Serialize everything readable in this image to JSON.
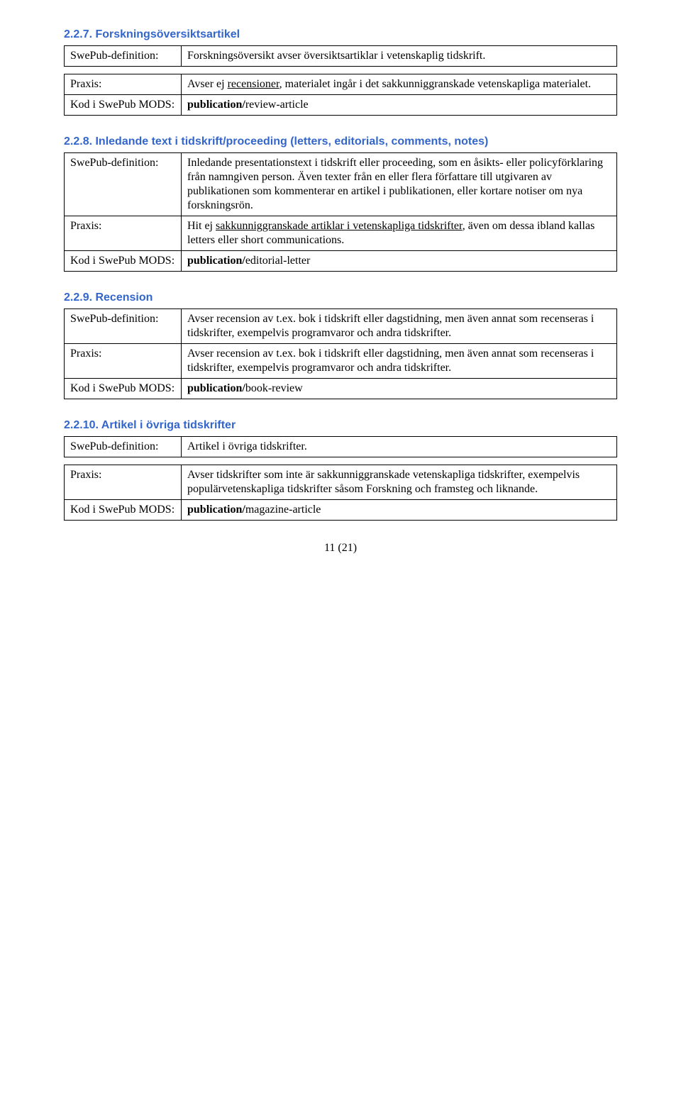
{
  "sections": [
    {
      "heading": "2.2.7. Forskningsöversiktsartikel",
      "split": true,
      "rows_top": [
        {
          "label": "SwePub-definition:",
          "value_parts": [
            {
              "text": "Forskningsöversikt avser översiktsartiklar i vetenskaplig tidskrift."
            }
          ]
        }
      ],
      "rows_bottom": [
        {
          "label": "Praxis:",
          "value_parts": [
            {
              "text": "Avser ej "
            },
            {
              "text": "recensioner",
              "underline": true
            },
            {
              "text": ", materialet ingår i det sakkunniggranskade vetenskapliga materialet."
            }
          ]
        },
        {
          "label": "Kod i SwePub MODS:",
          "value_parts": [
            {
              "text": "publication/",
              "bold": true
            },
            {
              "text": "review-article"
            }
          ]
        }
      ]
    },
    {
      "heading": "2.2.8. Inledande text i tidskrift/proceeding (letters, editorials, comments, notes)",
      "split": false,
      "rows": [
        {
          "label": "SwePub-definition:",
          "value_parts": [
            {
              "text": "Inledande presentationstext i tidskrift eller proceeding, som en åsikts- eller policyförklaring från namngiven person. Även texter från en eller flera författare till utgivaren av publikationen som kommenterar en artikel i publikationen, eller kortare notiser om nya forskningsrön."
            }
          ]
        },
        {
          "label": "Praxis:",
          "value_parts": [
            {
              "text": "Hit ej "
            },
            {
              "text": "sakkunniggranskade artiklar i vetenskapliga tidskrifter",
              "underline": true
            },
            {
              "text": ", även om dessa ibland kallas letters eller short communications."
            }
          ]
        },
        {
          "label": "Kod i SwePub MODS:",
          "value_parts": [
            {
              "text": "publication/",
              "bold": true
            },
            {
              "text": "editorial-letter"
            }
          ]
        }
      ]
    },
    {
      "heading": "2.2.9. Recension",
      "split": false,
      "rows": [
        {
          "label": "SwePub-definition:",
          "value_parts": [
            {
              "text": "Avser recension av t.ex. bok i tidskrift eller dagstidning, men även annat som recenseras i tidskrifter, exempelvis programvaror och andra tidskrifter."
            }
          ]
        },
        {
          "label": "Praxis:",
          "value_parts": [
            {
              "text": "Avser recension av t.ex. bok i tidskrift eller dagstidning, men även annat som recenseras i tidskrifter, exempelvis programvaror och andra tidskrifter."
            }
          ]
        },
        {
          "label": "Kod i SwePub MODS:",
          "value_parts": [
            {
              "text": "publication/",
              "bold": true
            },
            {
              "text": "book-review"
            }
          ]
        }
      ]
    },
    {
      "heading": "2.2.10. Artikel i övriga tidskrifter",
      "split": true,
      "rows_top": [
        {
          "label": "SwePub-definition:",
          "value_parts": [
            {
              "text": "Artikel i övriga tidskrifter."
            }
          ]
        }
      ],
      "rows_bottom": [
        {
          "label": "Praxis:",
          "value_parts": [
            {
              "text": "Avser tidskrifter som inte är sakkunniggranskade vetenskapliga tidskrifter, exempelvis populärvetenskapliga tidskrifter såsom Forskning och framsteg och liknande."
            }
          ]
        },
        {
          "label": "Kod i SwePub MODS:",
          "value_parts": [
            {
              "text": "publication/",
              "bold": true
            },
            {
              "text": "magazine-article"
            }
          ]
        }
      ]
    }
  ],
  "footer": "11 (21)"
}
